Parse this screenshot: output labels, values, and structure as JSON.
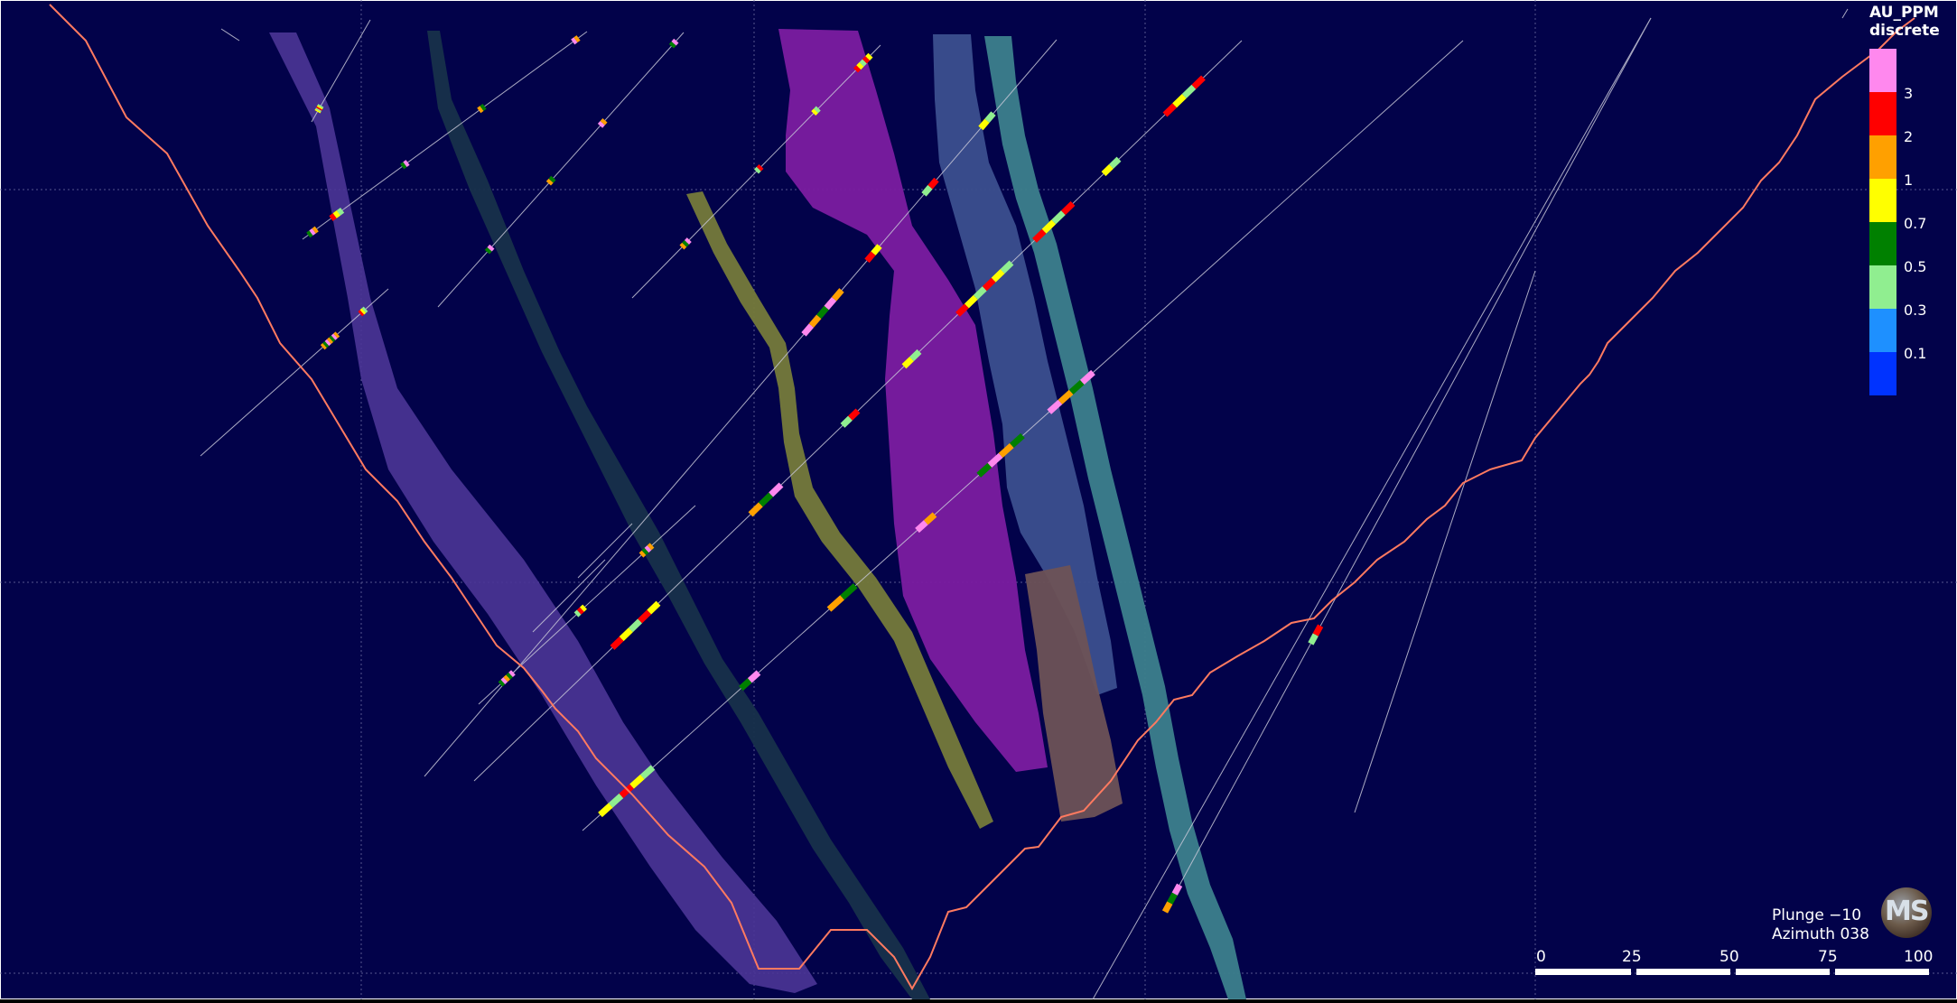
{
  "view": {
    "background": "#02024a",
    "orientation": {
      "plunge_text": "Plunge −10",
      "azimuth_text": "Azimuth 038"
    }
  },
  "legend": {
    "title_line1": "AU_PPM",
    "title_line2": "discrete",
    "bins": [
      {
        "color": "#ff88ee",
        "label": "3"
      },
      {
        "color": "#ff0000",
        "label": "2"
      },
      {
        "color": "#ffa000",
        "label": "1"
      },
      {
        "color": "#ffff00",
        "label": "0.7"
      },
      {
        "color": "#008000",
        "label": "0.5"
      },
      {
        "color": "#90ee90",
        "label": "0.3"
      },
      {
        "color": "#1e90ff",
        "label": "0.1"
      },
      {
        "color": "#0033ff",
        "label": ""
      }
    ]
  },
  "scale_bar": {
    "labels": [
      "0",
      "25",
      "50",
      "75",
      "100"
    ]
  },
  "logo": {
    "text": "MS",
    "icon": "company-logo-globe"
  },
  "surfaces": [
    {
      "name": "purple-vein-left",
      "color": "#4b3596"
    },
    {
      "name": "dark-green-vein",
      "color": "#17304a"
    },
    {
      "name": "olive-vein",
      "color": "#757a3a"
    },
    {
      "name": "magenta-vein",
      "color": "#7b1ca0"
    },
    {
      "name": "steel-blue-vein",
      "color": "#3b4f8e"
    },
    {
      "name": "teal-vein",
      "color": "#3c7f8c"
    },
    {
      "name": "brown-vein",
      "color": "#6d5256"
    }
  ],
  "topography_color": "#ff7a60",
  "grid_color": "#6b6ba0"
}
